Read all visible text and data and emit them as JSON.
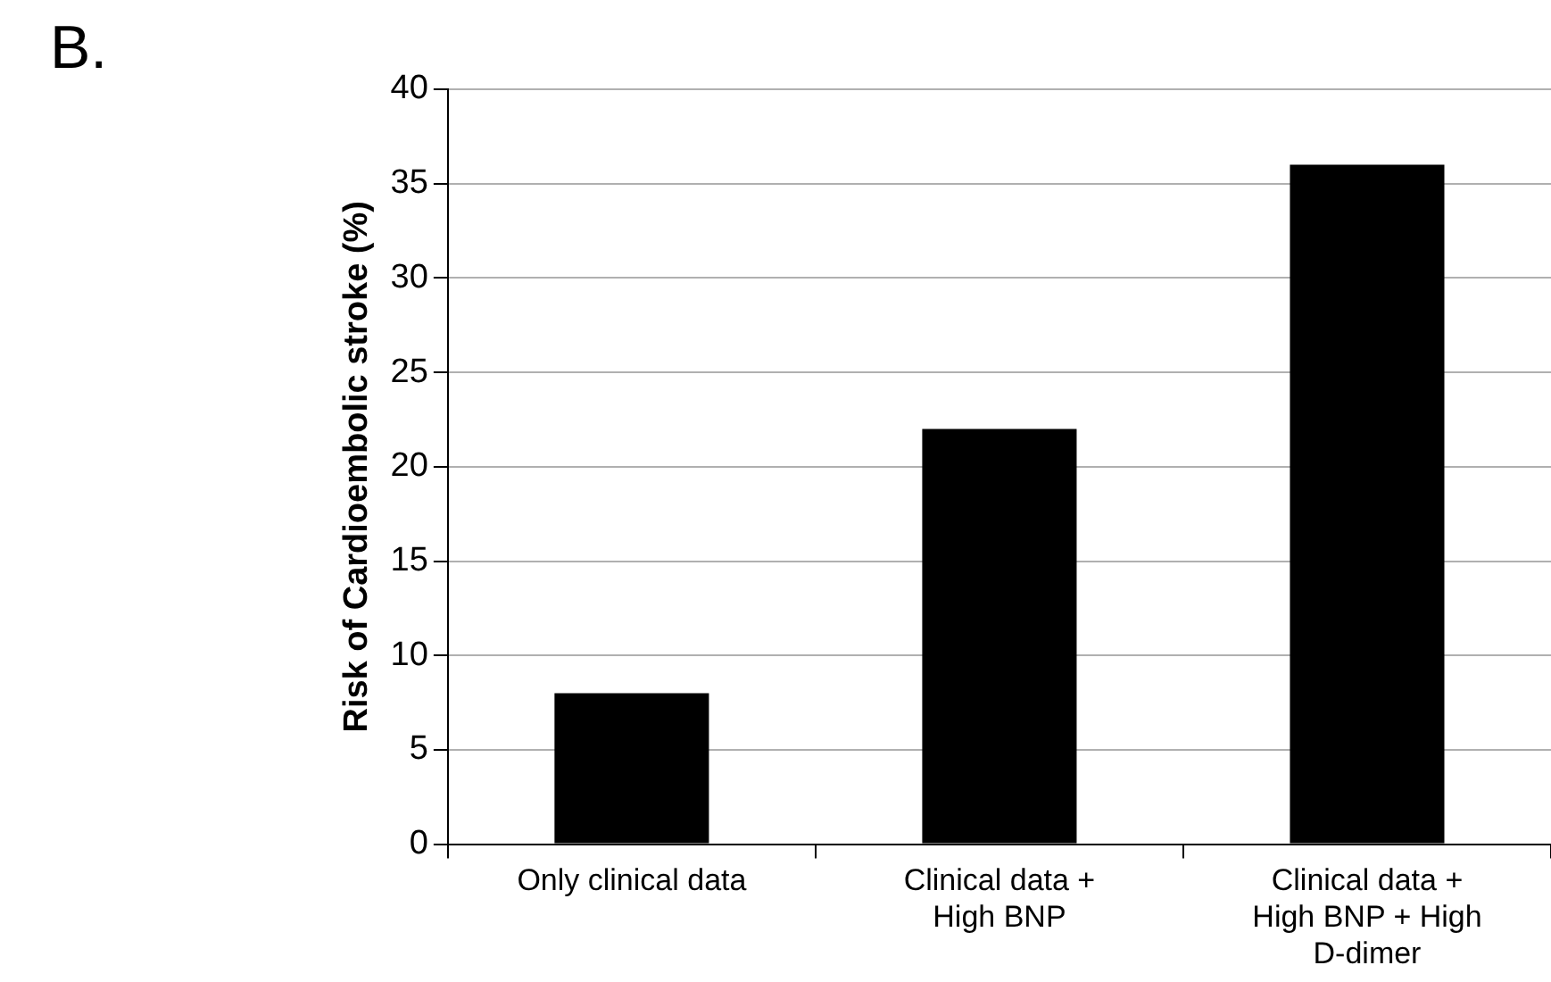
{
  "chart_data": {
    "type": "bar",
    "ylabel": "Risk of Cardioembolic stroke (%)",
    "annotations": [
      "B."
    ],
    "categories": [
      "Only clinical data",
      "Clinical data + High BNP",
      "Clinical data + High BNP + High D-dimer"
    ],
    "values": [
      8,
      22,
      36
    ],
    "color": "#000000",
    "ylim": [
      0,
      40
    ],
    "yticks": [
      0,
      5,
      10,
      15,
      20,
      25,
      30,
      35,
      40
    ],
    "grid": "y",
    "legend": false
  }
}
